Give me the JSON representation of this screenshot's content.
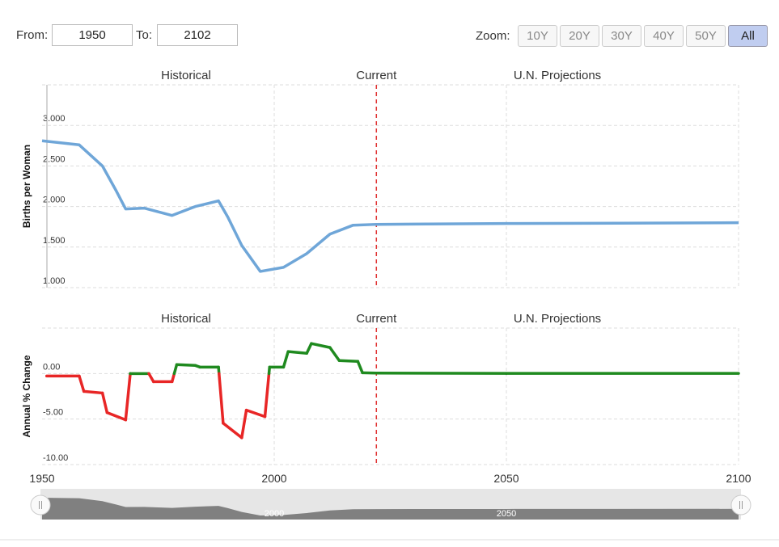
{
  "controls": {
    "from_label": "From:",
    "from": "1950",
    "to_label": "To:",
    "to": "2102",
    "zoom_label": "Zoom:",
    "zoom_buttons": [
      "10Y",
      "20Y",
      "30Y",
      "40Y",
      "50Y",
      "All"
    ],
    "active_zoom": "All"
  },
  "chart_data": [
    {
      "type": "line",
      "ylabel": "Births per Woman",
      "color": "#6fa6d8",
      "sections": [
        "Historical",
        "Current",
        "U.N. Projections"
      ],
      "current_year": 2022,
      "current_color": "#e03030",
      "xlim": [
        1950,
        2100
      ],
      "ylim": [
        1,
        3.5
      ],
      "yticks": [
        {
          "value": 1,
          "label": "1.000"
        },
        {
          "value": 1.5,
          "label": "1.500"
        },
        {
          "value": 2,
          "label": "2.000"
        },
        {
          "value": 2.5,
          "label": "2.500"
        },
        {
          "value": 3,
          "label": "3.000"
        }
      ],
      "x": [
        1950,
        1958,
        1963,
        1966,
        1968,
        1972,
        1978,
        1983,
        1988,
        1990,
        1993,
        1997,
        2002,
        2007,
        2012,
        2017,
        2022,
        2050,
        2100
      ],
      "values": [
        2.81,
        2.76,
        2.5,
        2.19,
        1.97,
        1.98,
        1.89,
        2.0,
        2.07,
        1.87,
        1.52,
        1.2,
        1.25,
        1.42,
        1.66,
        1.77,
        1.78,
        1.79,
        1.8
      ]
    },
    {
      "type": "signed_line",
      "ylabel": "Annual % Change",
      "positive_color": "#1f8a1f",
      "negative_color": "#e82626",
      "sections": [
        "Historical",
        "Current",
        "U.N. Projections"
      ],
      "current_year": 2022,
      "current_color": "#e03030",
      "xlim": [
        1950,
        2100
      ],
      "ylim": [
        -10,
        5
      ],
      "xticks": [
        1950,
        2000,
        2050,
        2100
      ],
      "yticks": [
        {
          "value": -10,
          "label": "-10.00"
        },
        {
          "value": -5,
          "label": "-5.00"
        },
        {
          "value": 0,
          "label": "0.00"
        }
      ],
      "x": [
        1951,
        1958,
        1959,
        1963,
        1964,
        1968,
        1969,
        1973,
        1974,
        1978,
        1979,
        1983,
        1984,
        1988,
        1989,
        1993,
        1994,
        1998,
        1999,
        2002,
        2003,
        2007,
        2008,
        2012,
        2014,
        2018,
        2019,
        2022,
        2050,
        2100
      ],
      "values": [
        -0.27,
        -0.27,
        -1.96,
        -2.14,
        -4.29,
        -5.09,
        0.0,
        0.0,
        -0.89,
        -0.89,
        0.98,
        0.89,
        0.71,
        0.71,
        -5.45,
        -7.05,
        -4.02,
        -4.73,
        0.71,
        0.71,
        2.41,
        2.23,
        3.3,
        2.86,
        1.43,
        1.34,
        0.09,
        0.05,
        0.02,
        0.02
      ]
    }
  ]
}
